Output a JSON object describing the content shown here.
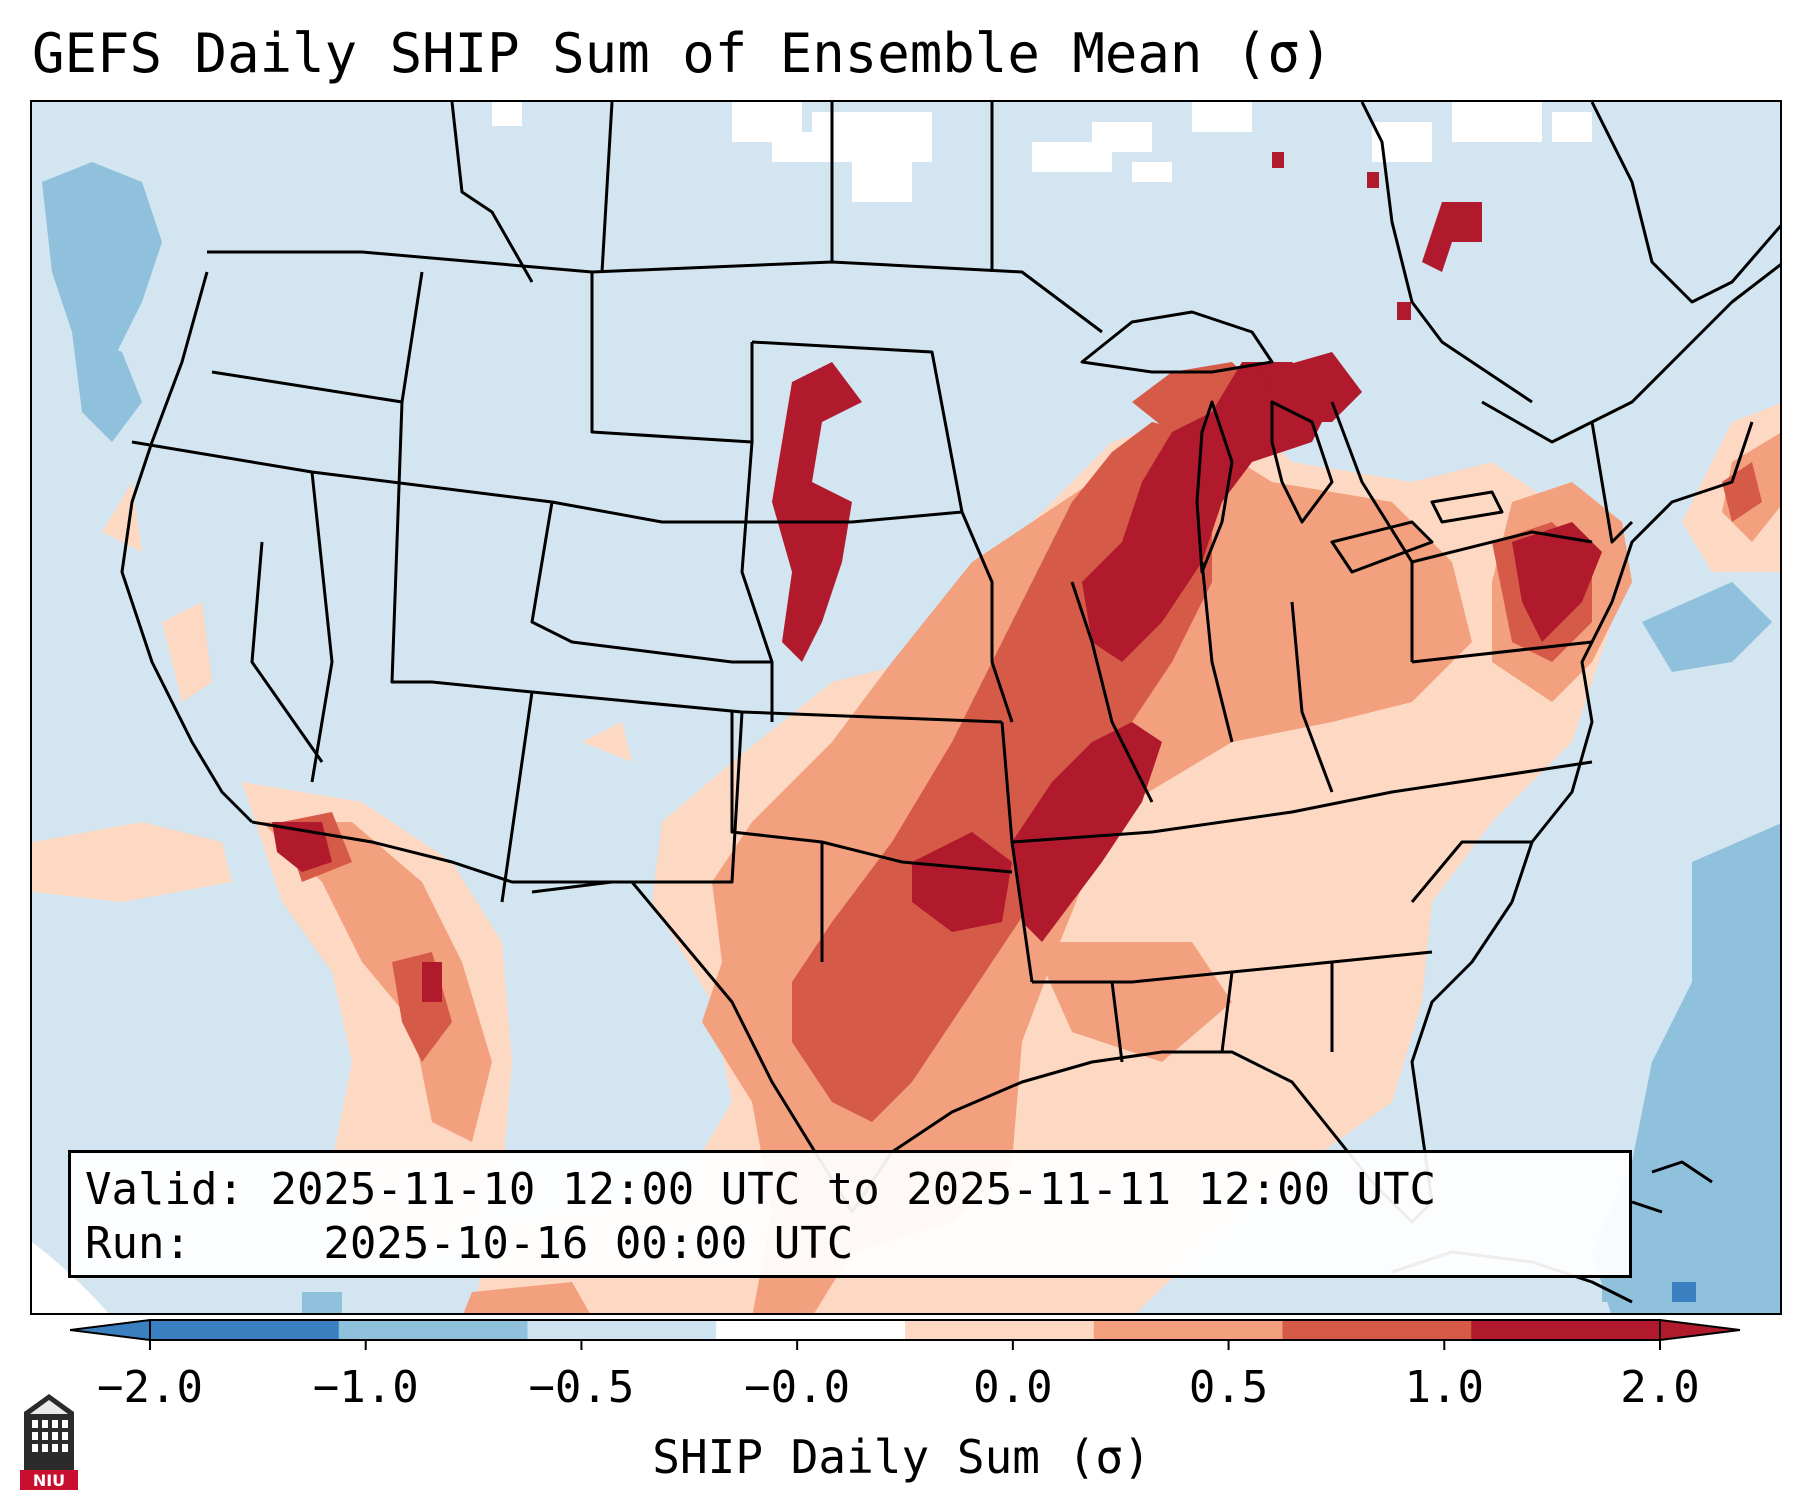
{
  "title": "GEFS Daily SHIP Sum of Ensemble Mean (σ)",
  "info": {
    "valid_label": "Valid:",
    "valid_value": "2025-11-10 12:00 UTC to 2025-11-11 12:00 UTC",
    "run_label": "Run:",
    "run_value": "2025-10-16 00:00 UTC"
  },
  "colorbar": {
    "label": "SHIP Daily Sum (σ)",
    "ticks": [
      "−2.0",
      "−1.0",
      "−0.5",
      "−0.0",
      "0.0",
      "0.5",
      "1.0",
      "2.0"
    ],
    "colors": [
      "#3a7fc0",
      "#8fc0dc",
      "#cfe4f0",
      "#ffffff",
      "#fdd9c4",
      "#f2a07e",
      "#d65a48",
      "#b01a2c"
    ],
    "extend": "both"
  },
  "map": {
    "region": "Contiguous United States",
    "background_color": "#d2e5f0",
    "outline_color": "#000000",
    "high_color": "#b01a2c",
    "medium_color": "#d65a48",
    "low_color": "#f2a07e",
    "faint_color": "#fdd9c4"
  },
  "logo": {
    "text": "NIU",
    "icon": "university-tower-icon"
  }
}
